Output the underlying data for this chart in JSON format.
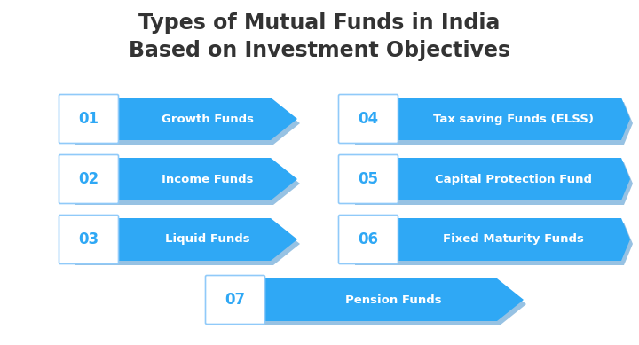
{
  "title_line1": "Types of Mutual Funds in India",
  "title_line2": "Based on Investment Objectives",
  "title_color": "#333333",
  "title_fontsize": 17,
  "bg_color": "#ffffff",
  "arrow_color": "#2fa8f5",
  "shadow_color": "#1a78c2",
  "box_border_color": "#90CAF9",
  "box_bg_color": "#ffffff",
  "number_color": "#2fa8f5",
  "label_color": "#ffffff",
  "items": [
    {
      "num": "01",
      "label": "Growth Funds",
      "col": 0,
      "row": 0
    },
    {
      "num": "02",
      "label": "Income Funds",
      "col": 0,
      "row": 1
    },
    {
      "num": "03",
      "label": "Liquid Funds",
      "col": 0,
      "row": 2
    },
    {
      "num": "04",
      "label": "Tax saving Funds (ELSS)",
      "col": 1,
      "row": 0
    },
    {
      "num": "05",
      "label": "Capital Protection Fund",
      "col": 1,
      "row": 1
    },
    {
      "num": "06",
      "label": "Fixed Maturity Funds",
      "col": 1,
      "row": 2
    },
    {
      "num": "07",
      "label": "Pension Funds",
      "col": 2,
      "row": 3
    }
  ]
}
